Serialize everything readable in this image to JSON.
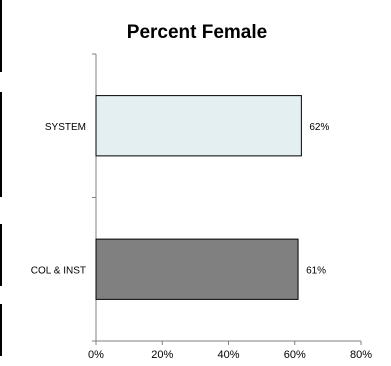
{
  "chart_data": {
    "type": "bar",
    "orientation": "horizontal",
    "title": "Percent Female",
    "categories": [
      "SYSTEM",
      "COL & INST"
    ],
    "values": [
      62,
      61
    ],
    "data_labels": [
      "62%",
      "61%"
    ],
    "bar_colors": [
      "#E4EFF2",
      "#808080"
    ],
    "xlabel": "",
    "ylabel": "",
    "xlim": [
      0,
      80
    ],
    "x_ticks": [
      0,
      20,
      40,
      60,
      80
    ],
    "x_tick_labels": [
      "0%",
      "20%",
      "40%",
      "60%",
      "80%"
    ],
    "grid": false,
    "legend": "none"
  }
}
